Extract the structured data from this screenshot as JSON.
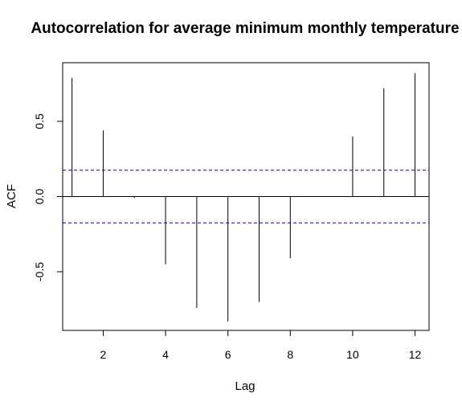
{
  "chart_data": {
    "type": "bar",
    "title": "Autocorrelation for average minimum monthly temperature",
    "xlabel": "Lag",
    "ylabel": "ACF",
    "x": [
      1,
      2,
      3,
      4,
      5,
      6,
      7,
      8,
      9,
      10,
      11,
      12
    ],
    "values": [
      0.79,
      0.44,
      -0.01,
      -0.45,
      -0.74,
      -0.83,
      -0.7,
      -0.41,
      0.0,
      0.4,
      0.72,
      0.82
    ],
    "xlim": [
      0.7,
      12.45
    ],
    "ylim": [
      -0.89,
      0.89
    ],
    "x_ticks": [
      2,
      4,
      6,
      8,
      10,
      12
    ],
    "y_ticks": [
      -0.5,
      0.0,
      0.5
    ],
    "y_tick_labels": [
      "-0.5",
      "0.0",
      "0.5"
    ],
    "confidence_bound": 0.175,
    "zero_line": true,
    "grid": false,
    "colors": {
      "bars": "#000000",
      "confidence_lines": "#0000cc",
      "frame": "#000000"
    }
  }
}
